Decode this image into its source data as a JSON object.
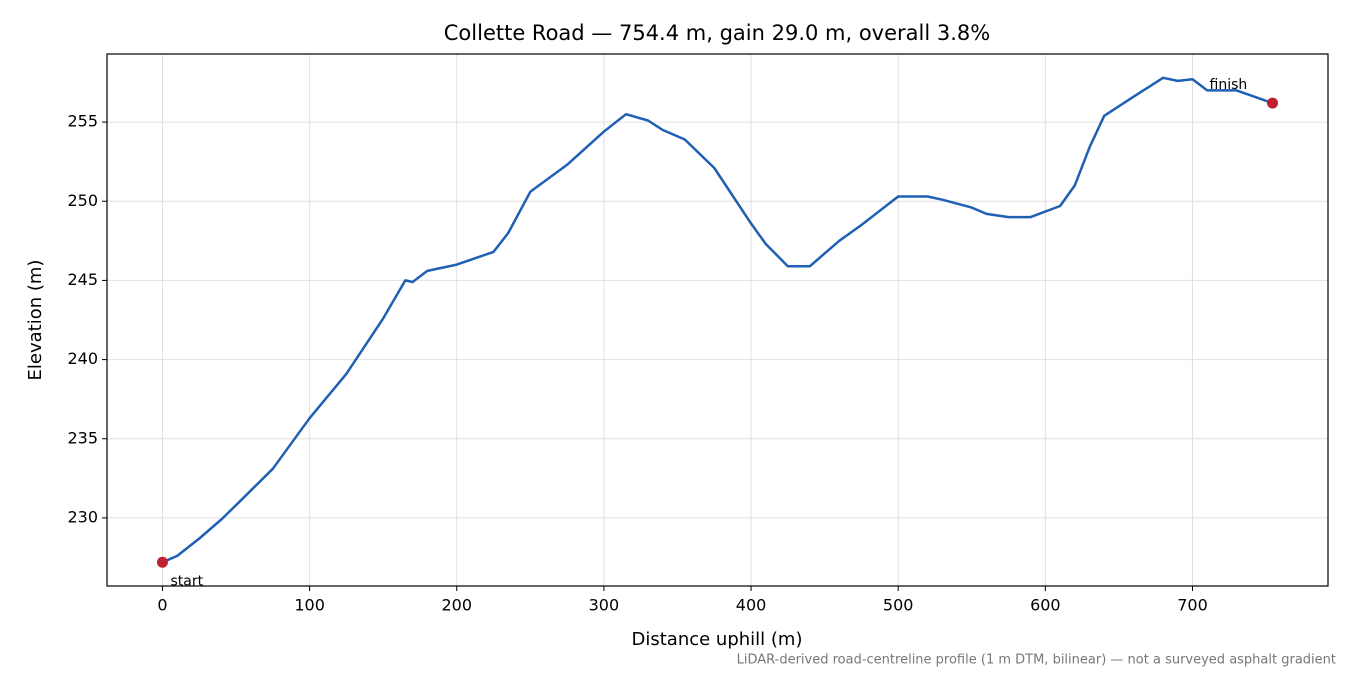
{
  "chart_data": {
    "type": "line",
    "title": "Collette Road — 754.4 m, gain 29.0 m, overall 3.8%",
    "x_label": "Distance uphill (m)",
    "y_label": "Elevation (m)",
    "footnote": "LiDAR-derived road-centreline profile (1 m DTM, bilinear) — not a surveyed asphalt gradient",
    "start_label": "start",
    "finish_label": "finish",
    "marker_color": "#c0202f",
    "grid": true,
    "xlim": [
      -37.7,
      792.1
    ],
    "ylim": [
      225.7,
      259.3
    ],
    "xticks": [
      0,
      100,
      200,
      300,
      400,
      500,
      600,
      700
    ],
    "yticks": [
      230,
      235,
      240,
      245,
      250,
      255
    ],
    "x": [
      0,
      10,
      25,
      40,
      50,
      75,
      100,
      125,
      150,
      160,
      165,
      170,
      180,
      200,
      225,
      235,
      250,
      275,
      300,
      315,
      330,
      340,
      355,
      375,
      400,
      410,
      425,
      440,
      460,
      475,
      500,
      520,
      530,
      550,
      560,
      575,
      590,
      610,
      620,
      630,
      640,
      660,
      680,
      690,
      700,
      710,
      730,
      754.4
    ],
    "series": [
      {
        "name": "Elevation",
        "color": "#1f5fb4",
        "values": [
          227.2,
          227.6,
          228.7,
          229.9,
          230.8,
          233.1,
          236.3,
          239.1,
          242.6,
          244.2,
          245.0,
          244.9,
          245.6,
          246.0,
          246.8,
          248.0,
          250.6,
          252.3,
          254.4,
          255.5,
          255.1,
          254.5,
          253.9,
          252.1,
          248.6,
          247.3,
          245.9,
          245.9,
          247.5,
          248.5,
          250.3,
          250.3,
          250.1,
          249.6,
          249.2,
          249.0,
          249.0,
          249.7,
          251.0,
          253.4,
          255.4,
          256.6,
          257.8,
          257.6,
          257.7,
          257.0,
          257.0,
          256.2
        ]
      }
    ]
  }
}
